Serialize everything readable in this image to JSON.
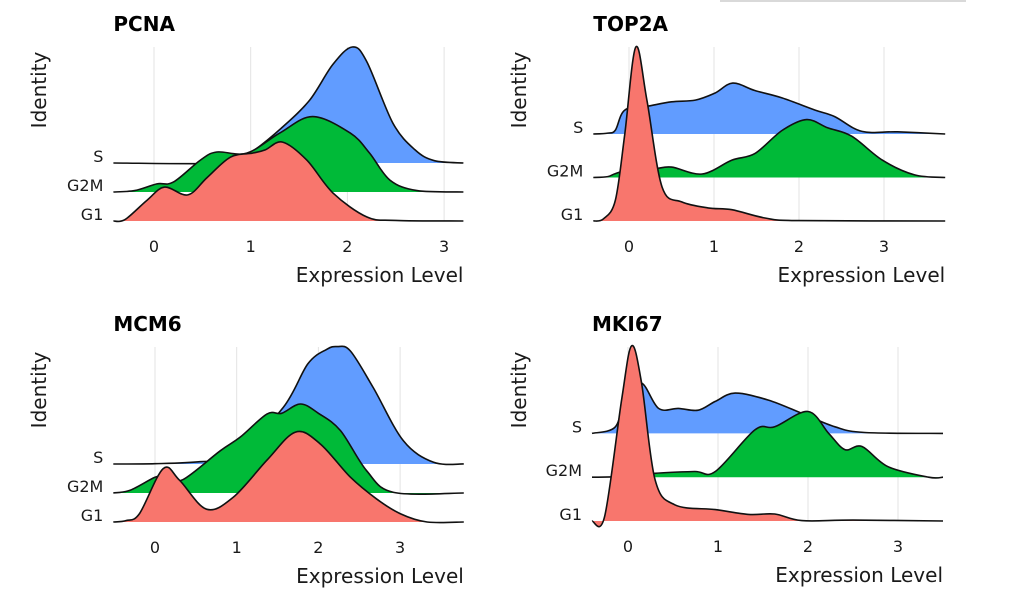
{
  "chart_data": [
    {
      "type": "ridgeline",
      "title": "PCNA",
      "xlabel": "Expression Level",
      "ylabel": "Identity",
      "categories": [
        "G1",
        "G2M",
        "S"
      ],
      "xticks": [
        0,
        1,
        2,
        3
      ],
      "xlim": [
        -0.42,
        3.2
      ],
      "grid": true,
      "series": [
        {
          "name": "S",
          "color": "#619CFF",
          "points": [
            [
              -0.42,
              0
            ],
            [
              0.8,
              0
            ],
            [
              1.0,
              0.35
            ],
            [
              1.33,
              1.24
            ],
            [
              1.61,
              2.17
            ],
            [
              1.85,
              3.4
            ],
            [
              2.05,
              4.0
            ],
            [
              2.2,
              3.5
            ],
            [
              2.47,
              1.38
            ],
            [
              2.7,
              0.45
            ],
            [
              2.9,
              0.08
            ],
            [
              3.2,
              0
            ]
          ]
        },
        {
          "name": "G2M",
          "color": "#00BA38",
          "points": [
            [
              -0.42,
              0
            ],
            [
              -0.2,
              0.05
            ],
            [
              0.03,
              0.28
            ],
            [
              0.2,
              0.34
            ],
            [
              0.48,
              1.1
            ],
            [
              0.65,
              1.38
            ],
            [
              0.96,
              1.34
            ],
            [
              1.3,
              2.03
            ],
            [
              1.64,
              2.6
            ],
            [
              2.03,
              2.03
            ],
            [
              2.23,
              1.34
            ],
            [
              2.44,
              0.41
            ],
            [
              2.72,
              0.05
            ],
            [
              3.2,
              0
            ]
          ]
        },
        {
          "name": "G1",
          "color": "#F8766D",
          "points": [
            [
              -0.42,
              0
            ],
            [
              -0.3,
              0.05
            ],
            [
              -0.07,
              0.72
            ],
            [
              0.11,
              1.17
            ],
            [
              0.35,
              0.9
            ],
            [
              0.55,
              1.5
            ],
            [
              0.79,
              2.2
            ],
            [
              1.02,
              2.34
            ],
            [
              1.15,
              2.45
            ],
            [
              1.33,
              2.72
            ],
            [
              1.58,
              2.1
            ],
            [
              1.85,
              0.97
            ],
            [
              2.2,
              0.14
            ],
            [
              2.5,
              0.02
            ],
            [
              3.2,
              0
            ]
          ]
        }
      ]
    },
    {
      "type": "ridgeline",
      "title": "TOP2A",
      "xlabel": "Expression Level",
      "ylabel": "Identity",
      "categories": [
        "G1",
        "G2M",
        "S"
      ],
      "xticks": [
        0,
        1,
        2,
        3
      ],
      "xlim": [
        -0.42,
        3.72
      ],
      "grid": true,
      "series": [
        {
          "name": "S",
          "color": "#619CFF",
          "points": [
            [
              -0.42,
              0
            ],
            [
              -0.25,
              0.02
            ],
            [
              -0.16,
              0.09
            ],
            [
              -0.05,
              0.55
            ],
            [
              0.22,
              0.64
            ],
            [
              0.5,
              0.74
            ],
            [
              0.78,
              0.78
            ],
            [
              1.01,
              0.94
            ],
            [
              1.22,
              1.17
            ],
            [
              1.48,
              1.0
            ],
            [
              1.8,
              0.83
            ],
            [
              2.19,
              0.55
            ],
            [
              2.42,
              0.4
            ],
            [
              2.74,
              0.06
            ],
            [
              3.16,
              0.05
            ],
            [
              3.72,
              0
            ]
          ]
        },
        {
          "name": "G2M",
          "color": "#00BA38",
          "points": [
            [
              -0.42,
              0
            ],
            [
              -0.25,
              0.02
            ],
            [
              -0.16,
              0.09
            ],
            [
              0.04,
              0.2
            ],
            [
              0.3,
              0.2
            ],
            [
              0.5,
              0.24
            ],
            [
              0.86,
              0.08
            ],
            [
              1.21,
              0.4
            ],
            [
              1.48,
              0.55
            ],
            [
              1.8,
              1.08
            ],
            [
              2.09,
              1.33
            ],
            [
              2.34,
              1.14
            ],
            [
              2.62,
              0.95
            ],
            [
              2.98,
              0.4
            ],
            [
              3.36,
              0.06
            ],
            [
              3.72,
              0
            ]
          ]
        },
        {
          "name": "G1",
          "color": "#F8766D",
          "points": [
            [
              -0.42,
              0
            ],
            [
              -0.3,
              0.05
            ],
            [
              -0.16,
              0.48
            ],
            [
              -0.05,
              2.0
            ],
            [
              0.08,
              4.0
            ],
            [
              0.21,
              2.78
            ],
            [
              0.39,
              0.78
            ],
            [
              0.62,
              0.44
            ],
            [
              0.93,
              0.3
            ],
            [
              1.21,
              0.26
            ],
            [
              1.6,
              0.07
            ],
            [
              2.0,
              0.01
            ],
            [
              3.72,
              0
            ]
          ]
        }
      ]
    },
    {
      "type": "ridgeline",
      "title": "MCM6",
      "xlabel": "Expression Level",
      "ylabel": "Identity",
      "categories": [
        "G1",
        "G2M",
        "S"
      ],
      "xticks": [
        0,
        1,
        2,
        3
      ],
      "xlim": [
        -0.51,
        3.78
      ],
      "grid": true,
      "series": [
        {
          "name": "S",
          "color": "#619CFF",
          "points": [
            [
              -0.51,
              0
            ],
            [
              0.0,
              0.01
            ],
            [
              0.55,
              0.08
            ],
            [
              1.0,
              0.3
            ],
            [
              1.57,
              1.95
            ],
            [
              1.87,
              3.45
            ],
            [
              2.1,
              3.95
            ],
            [
              2.23,
              4.05
            ],
            [
              2.39,
              3.9
            ],
            [
              2.67,
              2.64
            ],
            [
              3.04,
              0.8
            ],
            [
              3.41,
              0.06
            ],
            [
              3.78,
              0
            ]
          ]
        },
        {
          "name": "G2M",
          "color": "#00BA38",
          "points": [
            [
              -0.51,
              0
            ],
            [
              -0.3,
              0.1
            ],
            [
              0.0,
              0.54
            ],
            [
              0.15,
              0.6
            ],
            [
              0.34,
              0.46
            ],
            [
              0.8,
              1.46
            ],
            [
              1.04,
              1.92
            ],
            [
              1.37,
              2.72
            ],
            [
              1.55,
              2.75
            ],
            [
              1.78,
              3.07
            ],
            [
              2.0,
              2.75
            ],
            [
              2.27,
              2.15
            ],
            [
              2.59,
              0.77
            ],
            [
              2.92,
              0.02
            ],
            [
              3.78,
              0
            ]
          ]
        },
        {
          "name": "G1",
          "color": "#F8766D",
          "points": [
            [
              -0.51,
              0
            ],
            [
              -0.35,
              0.05
            ],
            [
              -0.19,
              0.29
            ],
            [
              0.1,
              1.84
            ],
            [
              0.3,
              1.44
            ],
            [
              0.63,
              0.44
            ],
            [
              0.96,
              0.86
            ],
            [
              1.37,
              2.13
            ],
            [
              1.72,
              3.1
            ],
            [
              2.02,
              2.7
            ],
            [
              2.39,
              1.55
            ],
            [
              2.71,
              0.8
            ],
            [
              3.0,
              0.29
            ],
            [
              3.33,
              0
            ],
            [
              3.78,
              0
            ]
          ]
        }
      ]
    },
    {
      "type": "ridgeline",
      "title": "MKI67",
      "xlabel": "Expression Level",
      "ylabel": "Identity",
      "categories": [
        "G1",
        "G2M",
        "S"
      ],
      "xticks": [
        0,
        1,
        2,
        3
      ],
      "xlim": [
        -0.4,
        3.5
      ],
      "grid": true,
      "series": [
        {
          "name": "S",
          "color": "#619CFF",
          "points": [
            [
              -0.4,
              0
            ],
            [
              -0.14,
              0.15
            ],
            [
              -0.03,
              0.84
            ],
            [
              0.15,
              1.15
            ],
            [
              0.34,
              0.57
            ],
            [
              0.56,
              0.57
            ],
            [
              0.78,
              0.53
            ],
            [
              0.97,
              0.73
            ],
            [
              1.19,
              0.92
            ],
            [
              1.56,
              0.76
            ],
            [
              1.93,
              0.46
            ],
            [
              2.3,
              0.15
            ],
            [
              2.63,
              0.02
            ],
            [
              3.5,
              0
            ]
          ]
        },
        {
          "name": "G2M",
          "color": "#00BA38",
          "points": [
            [
              -0.4,
              0
            ],
            [
              0.1,
              0.02
            ],
            [
              0.3,
              0.09
            ],
            [
              0.74,
              0.13
            ],
            [
              0.97,
              0.13
            ],
            [
              1.41,
              1.08
            ],
            [
              1.63,
              1.15
            ],
            [
              2.0,
              1.5
            ],
            [
              2.23,
              1.0
            ],
            [
              2.41,
              0.63
            ],
            [
              2.6,
              0.7
            ],
            [
              2.89,
              0.24
            ],
            [
              3.34,
              0
            ],
            [
              3.5,
              0
            ]
          ]
        },
        {
          "name": "G1",
          "color": "#F8766D",
          "points": [
            [
              -0.4,
              0
            ],
            [
              -0.26,
              0.1
            ],
            [
              -0.07,
              2.78
            ],
            [
              0.04,
              4.0
            ],
            [
              0.15,
              3.16
            ],
            [
              0.3,
              0.95
            ],
            [
              0.52,
              0.37
            ],
            [
              0.97,
              0.26
            ],
            [
              1.34,
              0.15
            ],
            [
              1.63,
              0.16
            ],
            [
              1.93,
              0.01
            ],
            [
              2.5,
              0.02
            ],
            [
              3.5,
              0
            ]
          ]
        }
      ]
    }
  ]
}
